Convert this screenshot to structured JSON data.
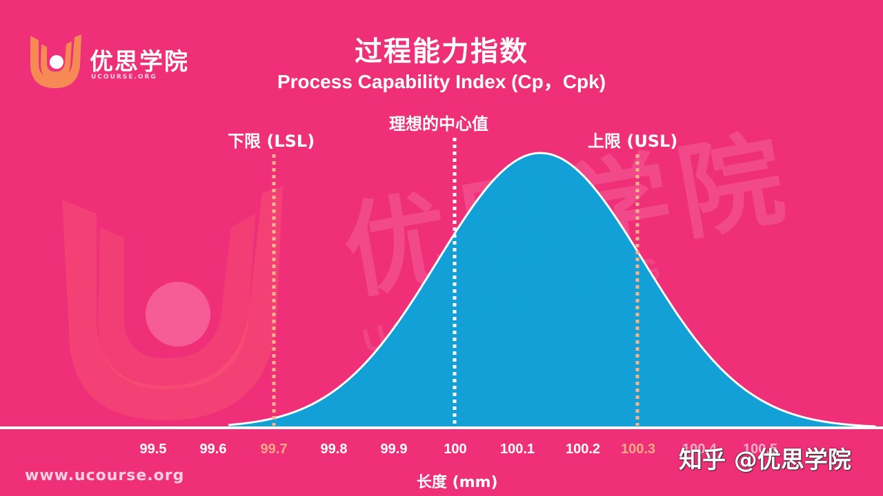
{
  "logo": {
    "name": "优思学院",
    "subtitle": "UCOURSE.ORG",
    "colors": {
      "primary": "#f58a55",
      "dot": "#ffffff"
    }
  },
  "title": {
    "cn": "过程能力指数",
    "en": "Process Capability Index (Cp，Cpk)"
  },
  "annotations": {
    "lsl": "下限 (LSL)",
    "target": "理想的中心值",
    "usl": "上限 (USL)"
  },
  "axis": {
    "xlabel": "长度 (mm)",
    "ticks": [
      "99.5",
      "99.6",
      "99.7",
      "99.8",
      "99.9",
      "100",
      "100.1",
      "100.2",
      "100.3",
      "100.4",
      "100.5"
    ]
  },
  "footer": {
    "website": "www.ucourse.org",
    "zhihu_watermark": "知乎 @优思学院"
  },
  "watermark": {
    "cn": "优思学院",
    "en": "UCOURSE.ORG"
  },
  "colors": {
    "background": "#ef2f78",
    "curve_fill": "#0aa4da",
    "curve_outline": "#ffffff",
    "limit_line": "#f8b38d",
    "target_line": "#ffffff",
    "limit_label": "#f8a985"
  },
  "chart_data": {
    "type": "area",
    "title": "过程能力指数 Process Capability Index (Cp，Cpk)",
    "xlabel": "长度 (mm)",
    "ylabel": "",
    "x_ticks": [
      99.5,
      99.6,
      99.7,
      99.8,
      99.9,
      100.0,
      100.1,
      100.2,
      100.3,
      100.4,
      100.5
    ],
    "xlim": [
      99.45,
      100.55
    ],
    "distribution": {
      "kind": "normal",
      "mean": 100.14,
      "sigma": 0.17
    },
    "lines": [
      {
        "name": "LSL",
        "label": "下限 (LSL)",
        "x": 99.7,
        "style": "dotted",
        "color": "#f8b38d"
      },
      {
        "name": "Target",
        "label": "理想的中心值",
        "x": 100.0,
        "style": "dotted",
        "color": "#ffffff"
      },
      {
        "name": "USL",
        "label": "上限 (USL)",
        "x": 100.3,
        "style": "dotted",
        "color": "#f8b38d"
      }
    ],
    "grid": false,
    "legend": null
  }
}
